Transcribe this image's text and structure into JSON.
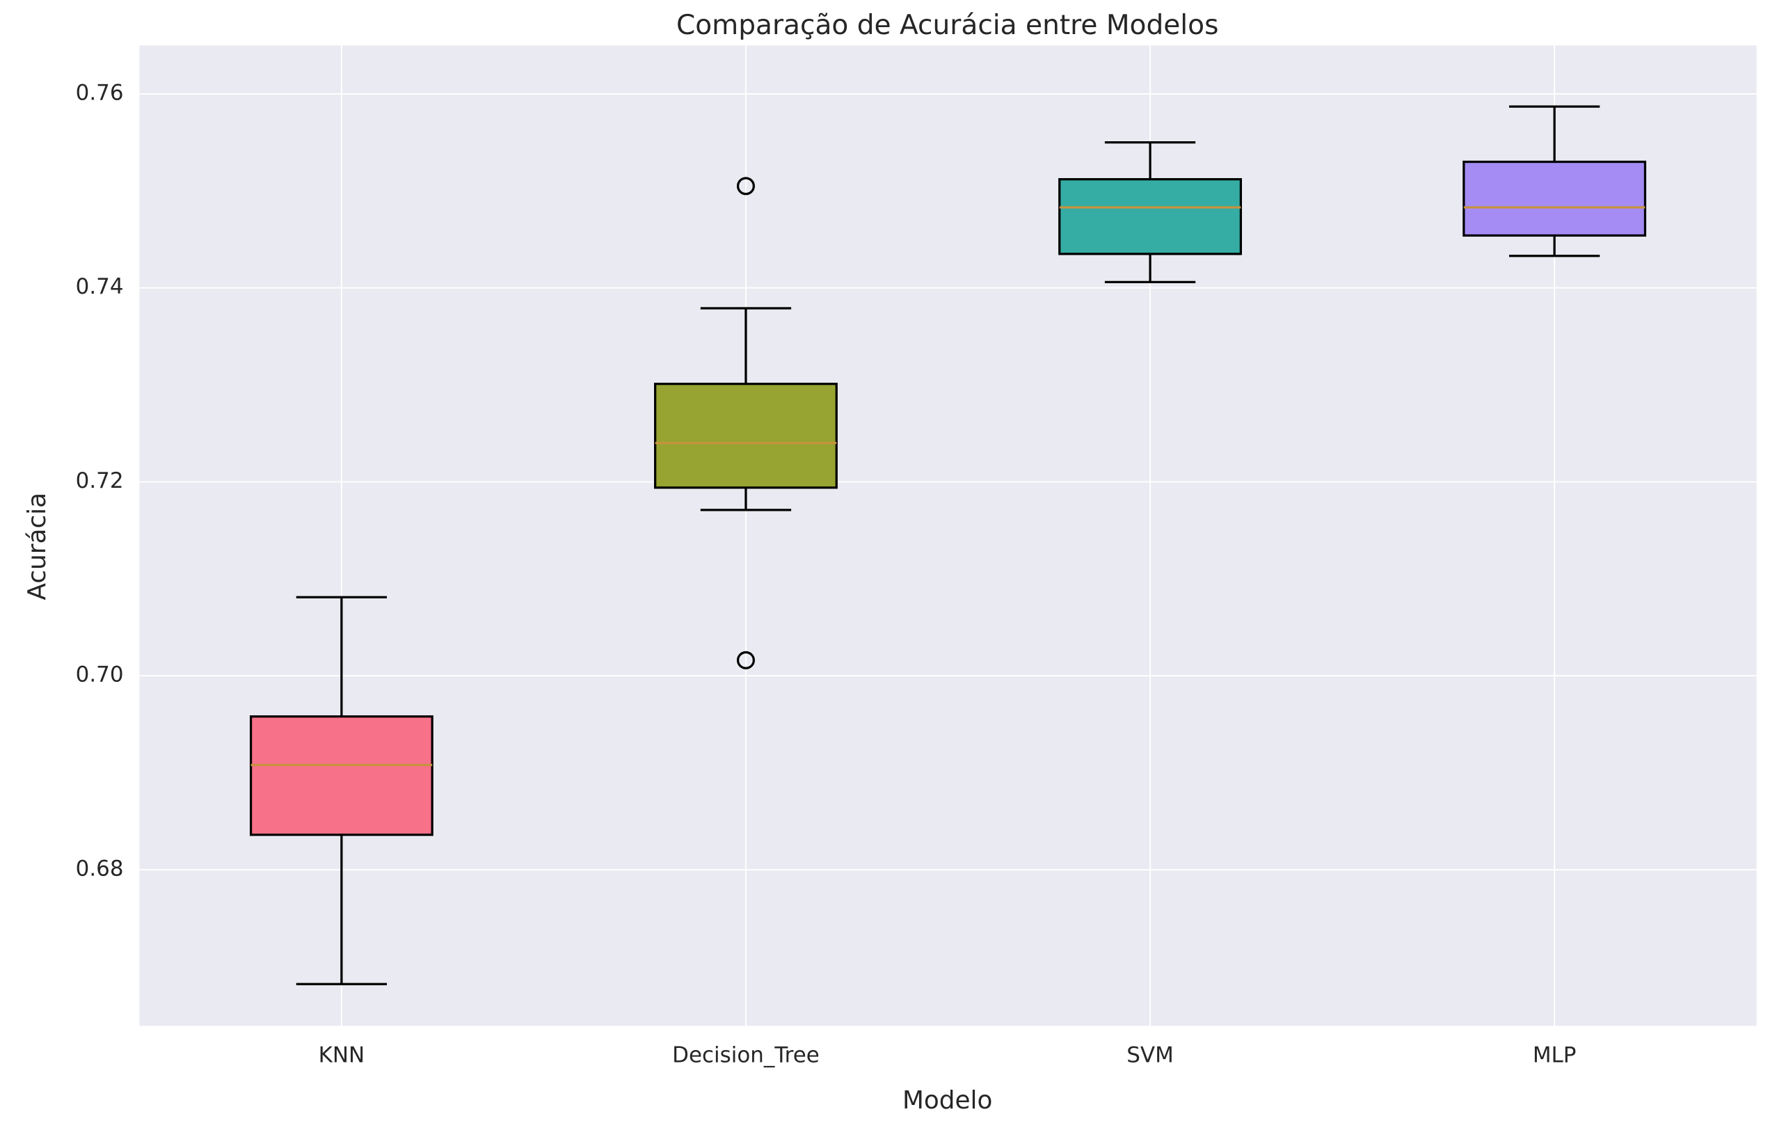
{
  "chart_data": {
    "type": "box",
    "title": "Comparação de Acurácia entre Modelos",
    "x_label": "Modelo",
    "y_label": "Acurácia",
    "categories": [
      "KNN",
      "Decision_Tree",
      "SVM",
      "MLP"
    ],
    "boxes": [
      {
        "whislo": 0.6682,
        "q1": 0.6836,
        "med": 0.6908,
        "q3": 0.6958,
        "whishi": 0.7081,
        "fliers": [],
        "color": "#f77189"
      },
      {
        "whislo": 0.7171,
        "q1": 0.7194,
        "med": 0.724,
        "q3": 0.7301,
        "whishi": 0.7379,
        "fliers": [
          0.7505,
          0.7016
        ],
        "color": "#97a431"
      },
      {
        "whislo": 0.7406,
        "q1": 0.7435,
        "med": 0.7483,
        "q3": 0.7512,
        "whishi": 0.755,
        "fliers": [],
        "color": "#36ada4"
      },
      {
        "whislo": 0.7433,
        "q1": 0.7454,
        "med": 0.7483,
        "q3": 0.753,
        "whishi": 0.7587,
        "fliers": [],
        "color": "#a48cf4"
      }
    ],
    "median_color": "#c8923e",
    "ylim": [
      0.6639,
      0.765
    ],
    "yticks": [
      0.68,
      {
        "value": 0.7,
        "label": "0.70"
      },
      0.72,
      0.74,
      0.76
    ],
    "grid": true
  }
}
